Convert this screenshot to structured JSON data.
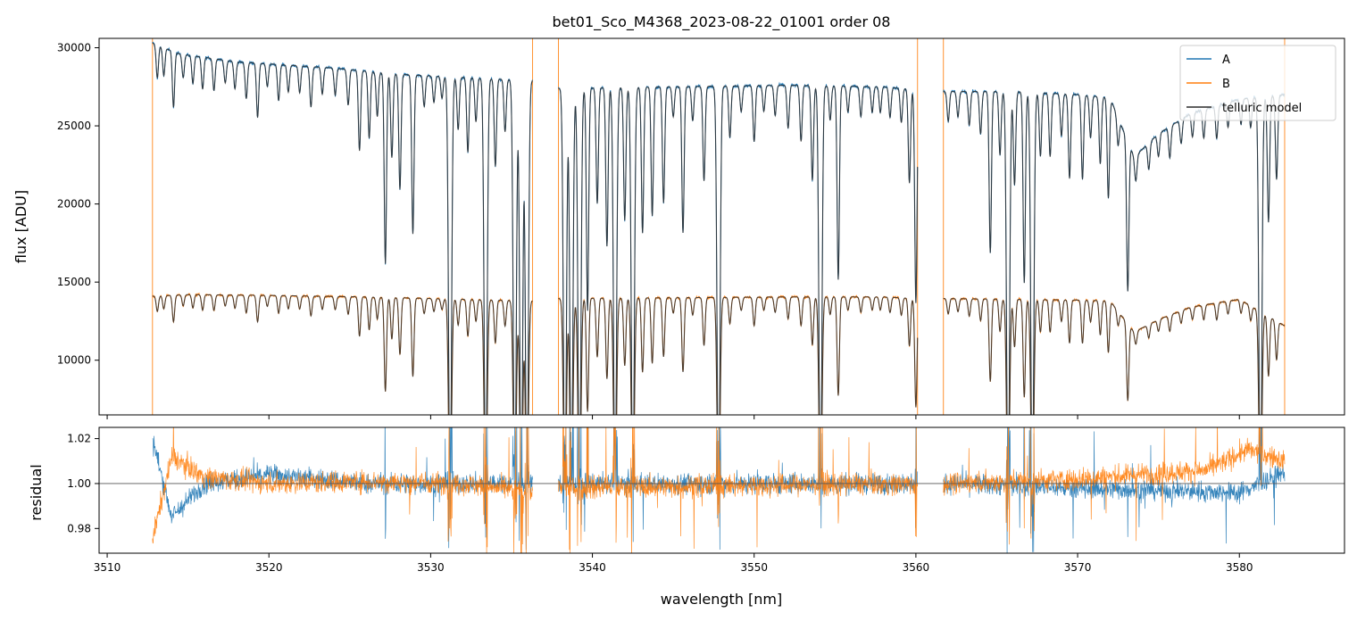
{
  "chart_data": {
    "type": "line",
    "title": "bet01_Sco_M4368_2023-08-22_01001  order 08",
    "xlabel": "wavelength [nm]",
    "xlim": [
      3509.5,
      3586.5
    ],
    "x_ticks": [
      3510,
      3520,
      3530,
      3540,
      3550,
      3560,
      3570,
      3580
    ],
    "colors": {
      "A": "#1f77b4",
      "B": "#ff7f0e",
      "model": "#2b2b2b",
      "resid_ref": "#555555"
    },
    "segments": [
      [
        3512.8,
        3536.3
      ],
      [
        3537.9,
        3560.1
      ],
      [
        3561.7,
        3582.8
      ]
    ],
    "panels": {
      "flux": {
        "ylabel": "flux [ADU]",
        "ylim": [
          6500,
          30600
        ],
        "y_ticks": [
          10000,
          15000,
          20000,
          25000,
          30000
        ]
      },
      "residual": {
        "ylabel": "residual",
        "ylim": [
          0.969,
          1.025
        ],
        "y_ticks": [
          0.98,
          1.0,
          1.02
        ],
        "y_tick_labels": [
          "0.98",
          "1.00",
          "1.02"
        ],
        "reference": 1.0
      }
    },
    "legend": {
      "position": "top-right",
      "entries": [
        {
          "key": "A",
          "label": "A"
        },
        {
          "key": "B",
          "label": "B"
        },
        {
          "key": "model",
          "label": "telluric model"
        }
      ]
    },
    "series": {
      "A_continuum": [
        [
          3512.8,
          30300
        ],
        [
          3514.5,
          29600
        ],
        [
          3518,
          29100
        ],
        [
          3524,
          28700
        ],
        [
          3528,
          28300
        ],
        [
          3534,
          28000
        ],
        [
          3536.3,
          27900
        ],
        [
          3537.9,
          27400
        ],
        [
          3545,
          27500
        ],
        [
          3552,
          27600
        ],
        [
          3558,
          27500
        ],
        [
          3560.1,
          27300
        ],
        [
          3561.7,
          27200
        ],
        [
          3566,
          27200
        ],
        [
          3570,
          27000
        ],
        [
          3572,
          26800
        ],
        [
          3573.5,
          23000
        ],
        [
          3575,
          24500
        ],
        [
          3577,
          25800
        ],
        [
          3580,
          26700
        ],
        [
          3582.8,
          27000
        ]
      ],
      "B_continuum": [
        [
          3512.8,
          14100
        ],
        [
          3515,
          14200
        ],
        [
          3520,
          14150
        ],
        [
          3526,
          14050
        ],
        [
          3530,
          13950
        ],
        [
          3536.3,
          13800
        ],
        [
          3537.9,
          13950
        ],
        [
          3545,
          14000
        ],
        [
          3552,
          14050
        ],
        [
          3558,
          14050
        ],
        [
          3560.1,
          13950
        ],
        [
          3561.7,
          13950
        ],
        [
          3566,
          13900
        ],
        [
          3570,
          13850
        ],
        [
          3572,
          13800
        ],
        [
          3573.5,
          11800
        ],
        [
          3575,
          12600
        ],
        [
          3577,
          13400
        ],
        [
          3580,
          13900
        ],
        [
          3582.8,
          12200
        ]
      ],
      "absorption_lines": [
        [
          3513.1,
          0.07
        ],
        [
          3513.5,
          0.06
        ],
        [
          3514.1,
          0.12
        ],
        [
          3514.7,
          0.05
        ],
        [
          3515.3,
          0.06
        ],
        [
          3515.9,
          0.07
        ],
        [
          3516.6,
          0.07
        ],
        [
          3517.3,
          0.05
        ],
        [
          3517.9,
          0.06
        ],
        [
          3518.6,
          0.08
        ],
        [
          3519.3,
          0.12
        ],
        [
          3519.9,
          0.05
        ],
        [
          3520.6,
          0.08
        ],
        [
          3521.2,
          0.06
        ],
        [
          3521.9,
          0.06
        ],
        [
          3522.6,
          0.09
        ],
        [
          3523.3,
          0.06
        ],
        [
          3524.1,
          0.06
        ],
        [
          3524.9,
          0.08
        ],
        [
          3525.6,
          0.18
        ],
        [
          3526.2,
          0.15
        ],
        [
          3526.7,
          0.1
        ],
        [
          3527.2,
          0.43
        ],
        [
          3527.6,
          0.19
        ],
        [
          3528.1,
          0.26
        ],
        [
          3528.9,
          0.36
        ],
        [
          3529.6,
          0.07
        ],
        [
          3530.2,
          0.06
        ],
        [
          3530.7,
          0.05
        ],
        [
          3531.2,
          0.99
        ],
        [
          3531.7,
          0.12
        ],
        [
          3532.3,
          0.17
        ],
        [
          3532.8,
          0.1
        ],
        [
          3533.4,
          0.99
        ],
        [
          3534.0,
          0.2
        ],
        [
          3534.6,
          0.12
        ],
        [
          3535.2,
          0.99
        ],
        [
          3535.6,
          0.99
        ],
        [
          3535.95,
          0.99
        ],
        [
          3538.3,
          0.99
        ],
        [
          3538.7,
          0.99
        ],
        [
          3539.2,
          0.99
        ],
        [
          3539.7,
          0.52
        ],
        [
          3540.3,
          0.27
        ],
        [
          3540.9,
          0.37
        ],
        [
          3541.4,
          0.99
        ],
        [
          3542.0,
          0.31
        ],
        [
          3542.5,
          0.99
        ],
        [
          3543.1,
          0.34
        ],
        [
          3543.7,
          0.3
        ],
        [
          3544.4,
          0.27
        ],
        [
          3545.0,
          0.07
        ],
        [
          3545.6,
          0.34
        ],
        [
          3546.2,
          0.08
        ],
        [
          3546.9,
          0.22
        ],
        [
          3547.8,
          0.99
        ],
        [
          3548.5,
          0.12
        ],
        [
          3549.2,
          0.06
        ],
        [
          3550.0,
          0.13
        ],
        [
          3550.6,
          0.06
        ],
        [
          3551.3,
          0.07
        ],
        [
          3552.1,
          0.1
        ],
        [
          3552.9,
          0.13
        ],
        [
          3553.6,
          0.22
        ],
        [
          3554.1,
          0.99
        ],
        [
          3554.7,
          0.08
        ],
        [
          3555.2,
          0.45
        ],
        [
          3555.8,
          0.06
        ],
        [
          3556.6,
          0.07
        ],
        [
          3557.3,
          0.06
        ],
        [
          3557.8,
          0.06
        ],
        [
          3558.4,
          0.07
        ],
        [
          3559.1,
          0.08
        ],
        [
          3559.6,
          0.22
        ],
        [
          3560.0,
          0.5
        ],
        [
          3562.0,
          0.07
        ],
        [
          3562.6,
          0.06
        ],
        [
          3563.3,
          0.08
        ],
        [
          3564.0,
          0.1
        ],
        [
          3564.6,
          0.38
        ],
        [
          3565.2,
          0.15
        ],
        [
          3565.7,
          0.99
        ],
        [
          3566.1,
          0.22
        ],
        [
          3566.7,
          0.45
        ],
        [
          3567.2,
          0.99
        ],
        [
          3567.7,
          0.15
        ],
        [
          3568.3,
          0.15
        ],
        [
          3569.0,
          0.1
        ],
        [
          3569.5,
          0.2
        ],
        [
          3570.3,
          0.2
        ],
        [
          3570.8,
          0.1
        ],
        [
          3571.4,
          0.16
        ],
        [
          3571.9,
          0.24
        ],
        [
          3572.5,
          0.07
        ],
        [
          3573.1,
          0.4
        ],
        [
          3573.6,
          0.07
        ],
        [
          3574.4,
          0.07
        ],
        [
          3575.0,
          0.06
        ],
        [
          3575.7,
          0.08
        ],
        [
          3576.4,
          0.06
        ],
        [
          3577.1,
          0.06
        ],
        [
          3577.8,
          0.07
        ],
        [
          3578.6,
          0.08
        ],
        [
          3579.3,
          0.06
        ],
        [
          3580.1,
          0.06
        ],
        [
          3580.7,
          0.07
        ],
        [
          3581.3,
          0.99
        ],
        [
          3581.8,
          0.3
        ],
        [
          3582.3,
          0.2
        ]
      ],
      "residual_A_level": [
        [
          3512.8,
          1.02
        ],
        [
          3514.0,
          0.985
        ],
        [
          3516,
          1.0
        ],
        [
          3520,
          1.004
        ],
        [
          3526,
          1.0
        ],
        [
          3532,
          1.0
        ],
        [
          3536.3,
          1.0
        ],
        [
          3537.9,
          1.0
        ],
        [
          3560.1,
          1.0
        ],
        [
          3561.7,
          1.0
        ],
        [
          3570,
          0.998
        ],
        [
          3580,
          0.996
        ],
        [
          3582.8,
          1.005
        ]
      ],
      "residual_B_level": [
        [
          3512.8,
          0.975
        ],
        [
          3514.0,
          1.012
        ],
        [
          3516,
          1.003
        ],
        [
          3520,
          1.0
        ],
        [
          3526,
          1.001
        ],
        [
          3532,
          1.0
        ],
        [
          3536.3,
          0.996
        ],
        [
          3537.9,
          0.998
        ],
        [
          3560.1,
          1.0
        ],
        [
          3561.7,
          1.0
        ],
        [
          3570,
          1.002
        ],
        [
          3578,
          1.006
        ],
        [
          3580.5,
          1.015
        ],
        [
          3582.8,
          1.01
        ]
      ]
    }
  }
}
